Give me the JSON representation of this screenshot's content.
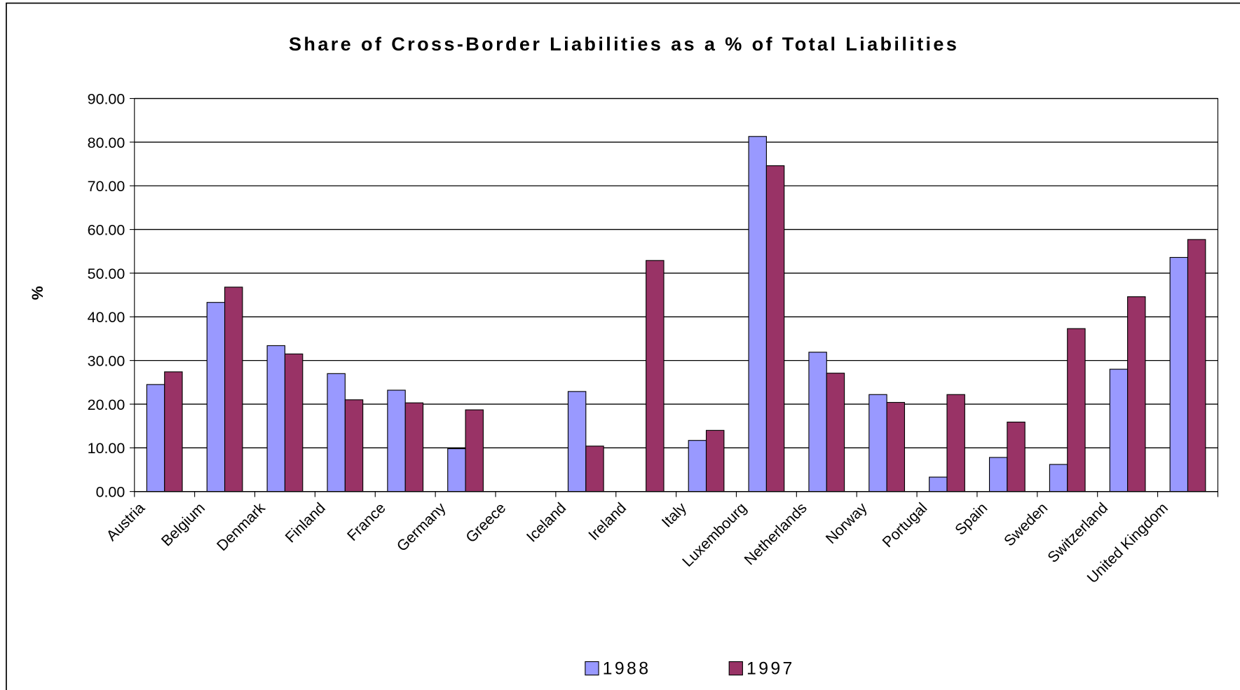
{
  "chart_data": {
    "type": "bar",
    "title": "Share of Cross-Border Liabilities as a % of Total Liabilities",
    "y_label": "%",
    "categories": [
      "Austria",
      "Belgium",
      "Denmark",
      "Finland",
      "France",
      "Germany",
      "Greece",
      "Iceland",
      "Ireland",
      "Italy",
      "Luxembourg",
      "Netherlands",
      "Norway",
      "Portugal",
      "Spain",
      "Sweden",
      "Switzerland",
      "United Kingdom"
    ],
    "series": [
      {
        "name": "1988",
        "color": "#9999ff",
        "values": [
          24.5,
          43.3,
          33.4,
          27.0,
          23.2,
          9.8,
          null,
          22.9,
          null,
          11.7,
          81.3,
          31.9,
          22.2,
          3.3,
          7.8,
          6.2,
          28.0,
          53.6
        ]
      },
      {
        "name": "1997",
        "color": "#993366",
        "values": [
          27.4,
          46.8,
          31.5,
          21.0,
          20.3,
          18.7,
          null,
          10.4,
          52.9,
          14.0,
          74.6,
          27.1,
          20.4,
          22.2,
          15.9,
          37.3,
          44.6,
          57.7
        ]
      }
    ],
    "ylim": [
      0,
      90
    ],
    "yticks": [
      {
        "value": 0,
        "label": "0.00"
      },
      {
        "value": 10,
        "label": "10.00"
      },
      {
        "value": 20,
        "label": "20.00"
      },
      {
        "value": 30,
        "label": "30.00"
      },
      {
        "value": 40,
        "label": "40.00"
      },
      {
        "value": 50,
        "label": "50.00"
      },
      {
        "value": 60,
        "label": "60.00"
      },
      {
        "value": 70,
        "label": "70.00"
      },
      {
        "value": 80,
        "label": "80.00"
      },
      {
        "value": 90,
        "label": "90.00"
      }
    ],
    "grid": true,
    "legend": "bottom"
  }
}
